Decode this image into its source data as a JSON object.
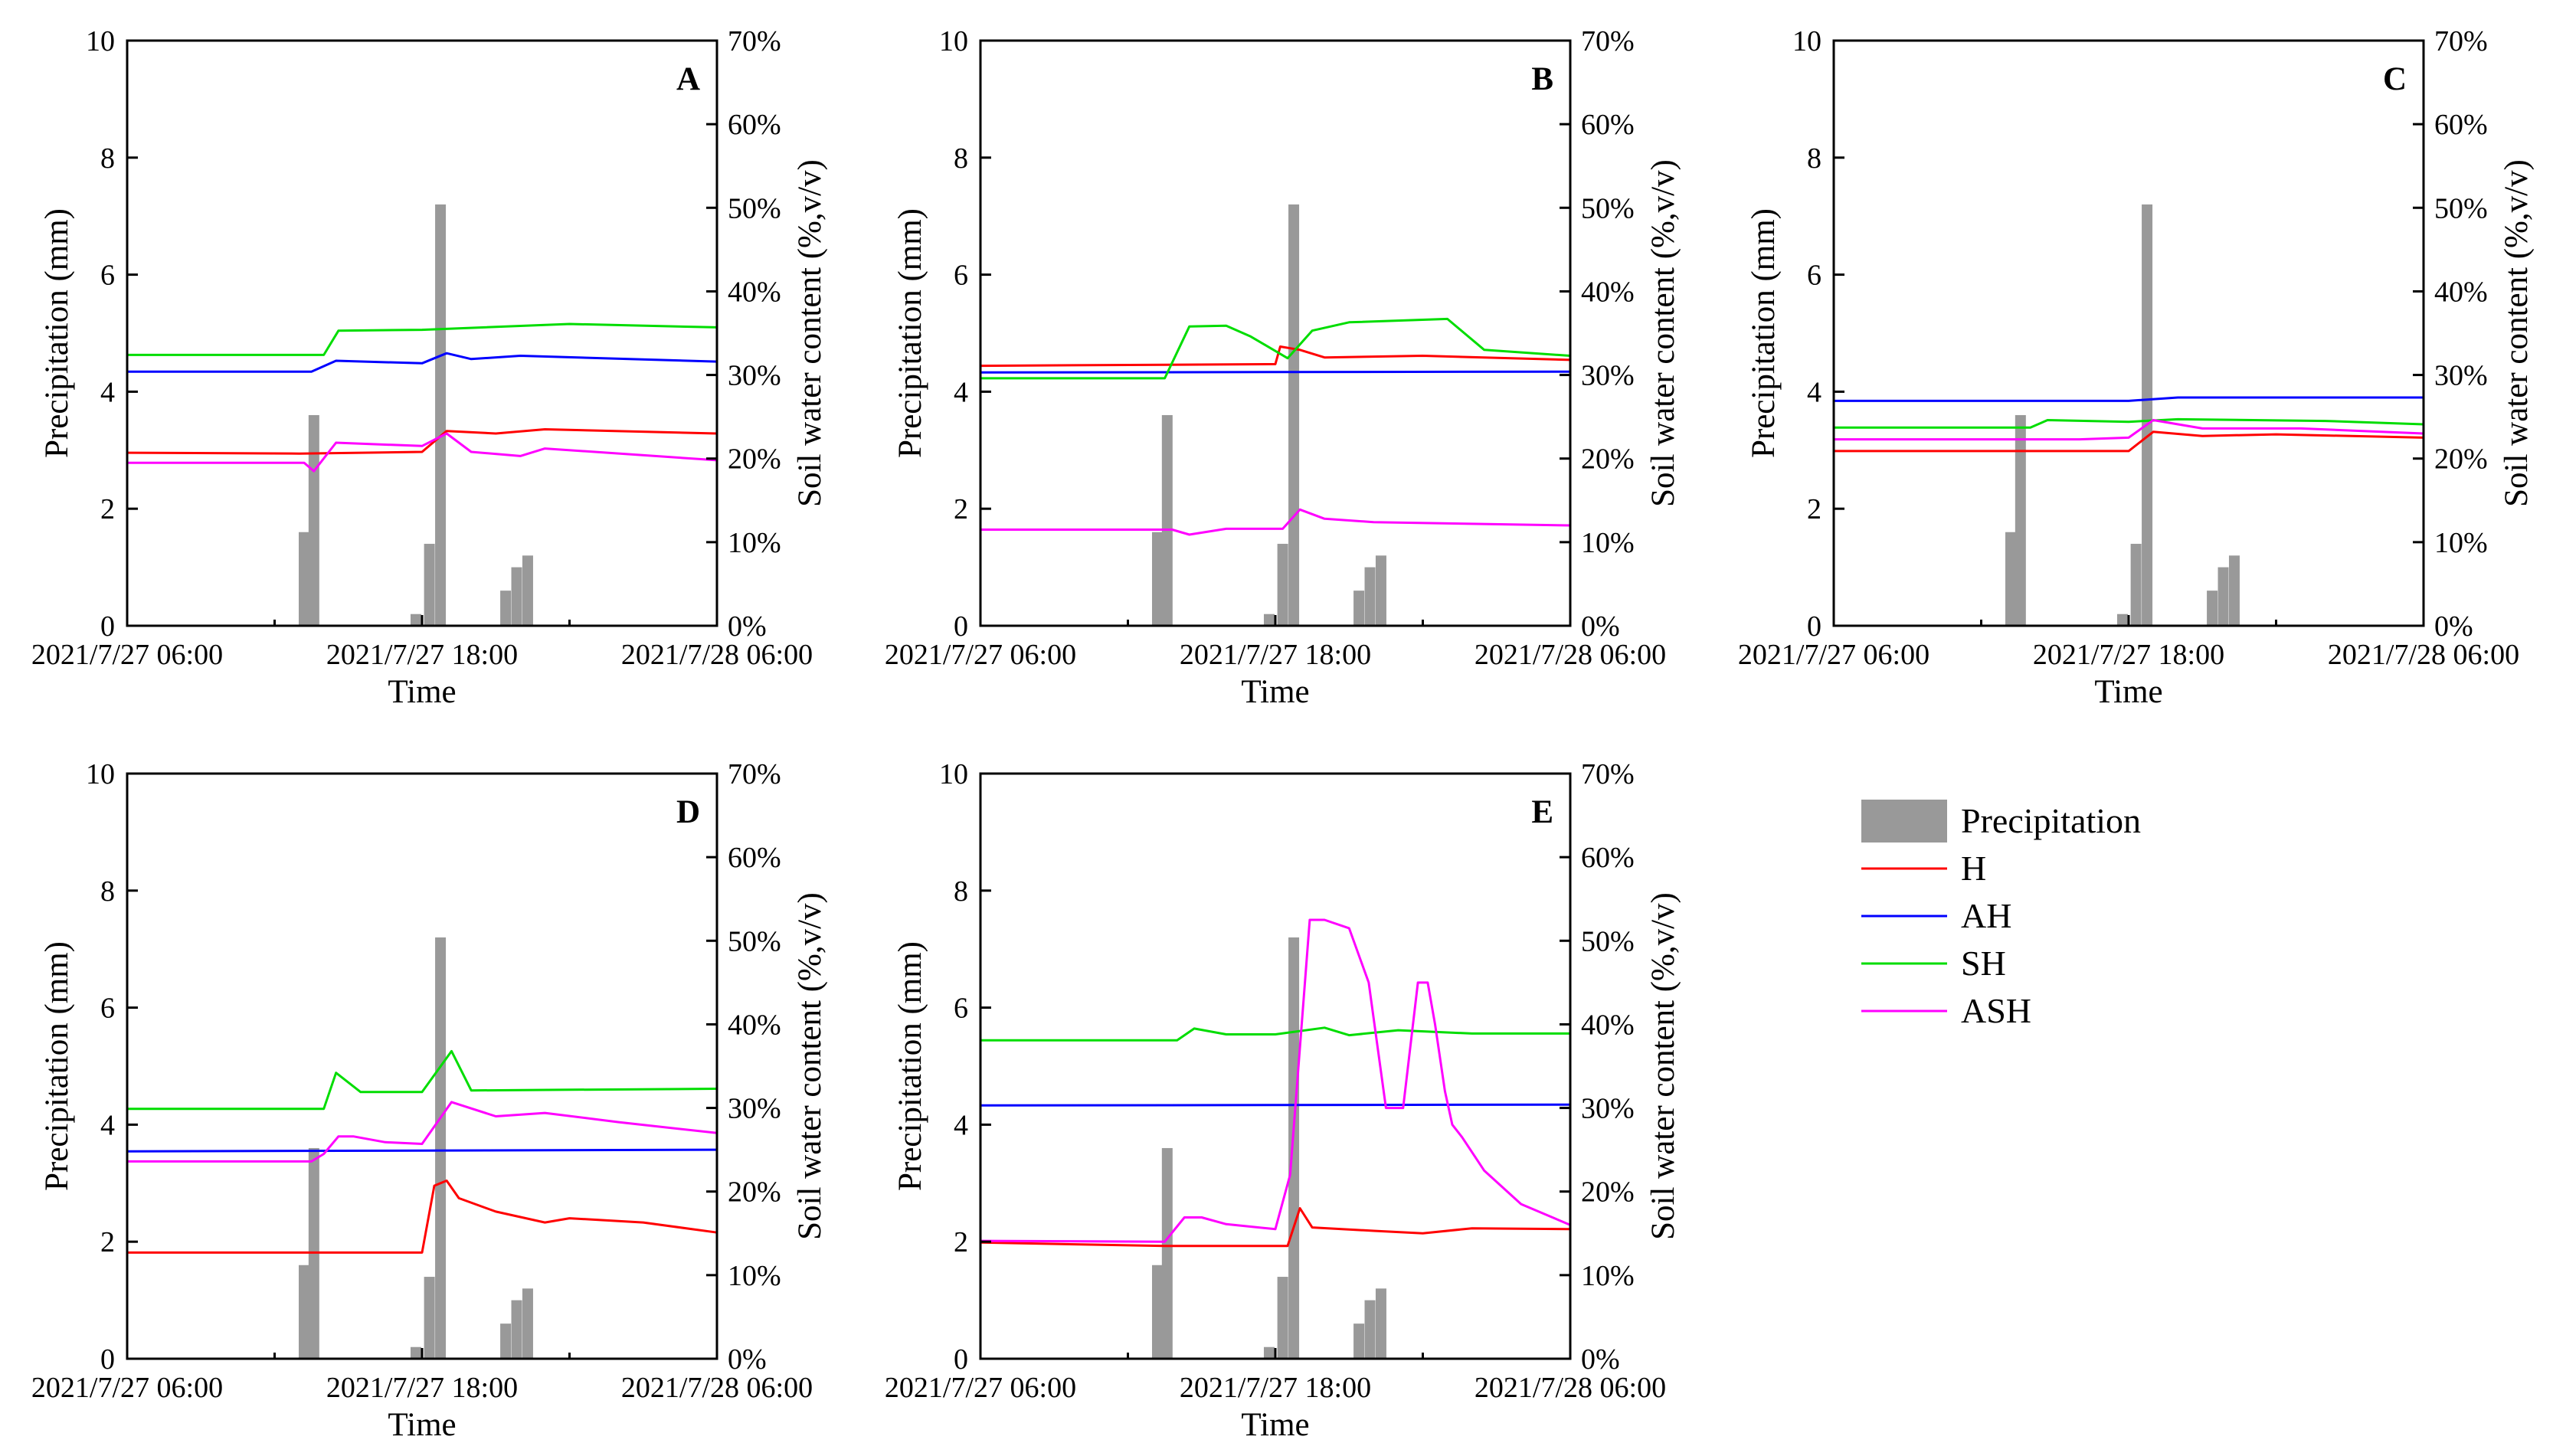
{
  "chart_data": {
    "type": "bar+line",
    "layout": "2x3 grid of panels (A–E) with shared legend in the sixth cell",
    "x_axis": {
      "title": "Time",
      "range_hours": [
        0,
        24
      ],
      "ticks": [
        {
          "h": 0,
          "label": "2021/7/27 06:00"
        },
        {
          "h": 12,
          "label": "2021/7/27 18:00"
        },
        {
          "h": 24,
          "label": "2021/7/28 06:00"
        }
      ]
    },
    "y_left": {
      "title": "Precipitation (mm)",
      "range": [
        0,
        10
      ],
      "ticks": [
        0,
        2,
        4,
        6,
        8,
        10
      ]
    },
    "y_right": {
      "title": "Soil water content (%,v/v)",
      "range": [
        0,
        70
      ],
      "ticks": [
        "0%",
        "10%",
        "20%",
        "30%",
        "40%",
        "50%",
        "60%",
        "70%"
      ]
    },
    "precipitation_bars": [
      {
        "h": 7.2,
        "mm": 1.6
      },
      {
        "h": 7.6,
        "mm": 3.6
      },
      {
        "h": 11.75,
        "mm": 0.2
      },
      {
        "h": 12.3,
        "mm": 1.4
      },
      {
        "h": 12.75,
        "mm": 7.2
      },
      {
        "h": 15.4,
        "mm": 0.6
      },
      {
        "h": 15.85,
        "mm": 1.0
      },
      {
        "h": 16.3,
        "mm": 1.2
      }
    ],
    "legend": [
      {
        "key": "precip",
        "label": "Precipitation",
        "color": "#999999"
      },
      {
        "key": "H",
        "label": "H",
        "color": "#ff0000"
      },
      {
        "key": "AH",
        "label": "AH",
        "color": "#0000ff"
      },
      {
        "key": "SH",
        "label": "SH",
        "color": "#00dd00"
      },
      {
        "key": "ASH",
        "label": "ASH",
        "color": "#ff00ff"
      }
    ],
    "panels": [
      {
        "label": "A",
        "series": {
          "H": [
            [
              0,
              20.7
            ],
            [
              7,
              20.6
            ],
            [
              12,
              20.8
            ],
            [
              13,
              23.3
            ],
            [
              15,
              23.0
            ],
            [
              17,
              23.5
            ],
            [
              24,
              23.0
            ]
          ],
          "AH": [
            [
              0,
              30.4
            ],
            [
              7.5,
              30.4
            ],
            [
              8.5,
              31.7
            ],
            [
              12,
              31.4
            ],
            [
              13,
              32.6
            ],
            [
              14,
              31.9
            ],
            [
              16,
              32.3
            ],
            [
              24,
              31.6
            ]
          ],
          "SH": [
            [
              0,
              32.4
            ],
            [
              8,
              32.4
            ],
            [
              8.6,
              35.3
            ],
            [
              12,
              35.4
            ],
            [
              18,
              36.1
            ],
            [
              24,
              35.7
            ]
          ],
          "ASH": [
            [
              0,
              19.5
            ],
            [
              7.2,
              19.5
            ],
            [
              7.6,
              18.5
            ],
            [
              8.5,
              21.9
            ],
            [
              12,
              21.5
            ],
            [
              13,
              23.0
            ],
            [
              14,
              20.8
            ],
            [
              16,
              20.3
            ],
            [
              17,
              21.2
            ],
            [
              24,
              19.8
            ]
          ]
        }
      },
      {
        "label": "B",
        "series": {
          "H": [
            [
              0,
              31.1
            ],
            [
              12,
              31.3
            ],
            [
              12.2,
              33.4
            ],
            [
              13,
              33.0
            ],
            [
              14,
              32.1
            ],
            [
              18,
              32.3
            ],
            [
              24,
              31.8
            ]
          ],
          "AH": [
            [
              0,
              30.3
            ],
            [
              24,
              30.4
            ]
          ],
          "SH": [
            [
              0,
              29.6
            ],
            [
              7.5,
              29.6
            ],
            [
              8.5,
              35.8
            ],
            [
              10,
              35.9
            ],
            [
              11,
              34.6
            ],
            [
              12.5,
              32.0
            ],
            [
              13.5,
              35.3
            ],
            [
              15,
              36.3
            ],
            [
              19,
              36.7
            ],
            [
              20.5,
              33.0
            ],
            [
              24,
              32.3
            ]
          ],
          "ASH": [
            [
              0,
              11.5
            ],
            [
              7.8,
              11.5
            ],
            [
              8.5,
              10.9
            ],
            [
              10,
              11.6
            ],
            [
              12.3,
              11.6
            ],
            [
              13,
              13.9
            ],
            [
              14,
              12.8
            ],
            [
              16,
              12.4
            ],
            [
              24,
              12.0
            ]
          ]
        }
      },
      {
        "label": "C",
        "series": {
          "H": [
            [
              0,
              20.9
            ],
            [
              12,
              20.9
            ],
            [
              13,
              23.2
            ],
            [
              15,
              22.7
            ],
            [
              18,
              22.9
            ],
            [
              24,
              22.5
            ]
          ],
          "AH": [
            [
              0,
              26.9
            ],
            [
              12,
              26.9
            ],
            [
              14,
              27.3
            ],
            [
              24,
              27.3
            ]
          ],
          "SH": [
            [
              0,
              23.7
            ],
            [
              8,
              23.7
            ],
            [
              8.7,
              24.6
            ],
            [
              12,
              24.4
            ],
            [
              14,
              24.7
            ],
            [
              20,
              24.5
            ],
            [
              24,
              24.1
            ]
          ],
          "ASH": [
            [
              0,
              22.3
            ],
            [
              10,
              22.3
            ],
            [
              12,
              22.5
            ],
            [
              13,
              24.6
            ],
            [
              15,
              23.6
            ],
            [
              19,
              23.6
            ],
            [
              24,
              23.0
            ]
          ]
        }
      },
      {
        "label": "D",
        "series": {
          "H": [
            [
              0,
              12.7
            ],
            [
              12,
              12.7
            ],
            [
              12.5,
              20.7
            ],
            [
              13,
              21.3
            ],
            [
              13.5,
              19.2
            ],
            [
              15,
              17.6
            ],
            [
              17,
              16.3
            ],
            [
              18,
              16.8
            ],
            [
              21,
              16.3
            ],
            [
              24,
              15.1
            ]
          ],
          "AH": [
            [
              0,
              24.8
            ],
            [
              24,
              25.0
            ]
          ],
          "SH": [
            [
              0,
              29.9
            ],
            [
              8,
              29.9
            ],
            [
              8.5,
              34.2
            ],
            [
              9.5,
              31.9
            ],
            [
              12,
              31.9
            ],
            [
              13.2,
              36.8
            ],
            [
              14,
              32.1
            ],
            [
              24,
              32.3
            ]
          ],
          "ASH": [
            [
              0,
              23.6
            ],
            [
              7.5,
              23.6
            ],
            [
              8,
              24.5
            ],
            [
              8.6,
              26.6
            ],
            [
              9.2,
              26.6
            ],
            [
              10.5,
              25.9
            ],
            [
              12,
              25.7
            ],
            [
              13.2,
              30.7
            ],
            [
              15,
              29.0
            ],
            [
              17,
              29.4
            ],
            [
              20,
              28.3
            ],
            [
              24,
              27.0
            ]
          ]
        }
      },
      {
        "label": "E",
        "series": {
          "H": [
            [
              0,
              13.9
            ],
            [
              7.5,
              13.5
            ],
            [
              12.5,
              13.5
            ],
            [
              13,
              18.0
            ],
            [
              13.5,
              15.7
            ],
            [
              16,
              15.3
            ],
            [
              18,
              15.0
            ],
            [
              20,
              15.6
            ],
            [
              24,
              15.5
            ]
          ],
          "AH": [
            [
              0,
              30.3
            ],
            [
              24,
              30.4
            ]
          ],
          "SH": [
            [
              0,
              38.1
            ],
            [
              8,
              38.1
            ],
            [
              8.7,
              39.5
            ],
            [
              10,
              38.8
            ],
            [
              12,
              38.8
            ],
            [
              14,
              39.6
            ],
            [
              15,
              38.7
            ],
            [
              17,
              39.3
            ],
            [
              20,
              38.9
            ],
            [
              24,
              38.9
            ]
          ],
          "ASH": [
            [
              0,
              14.1
            ],
            [
              7.5,
              14.0
            ],
            [
              8.3,
              16.9
            ],
            [
              9,
              16.9
            ],
            [
              10,
              16.1
            ],
            [
              12,
              15.5
            ],
            [
              12.6,
              22.0
            ],
            [
              13.4,
              52.5
            ],
            [
              14,
              52.5
            ],
            [
              15,
              51.5
            ],
            [
              15.8,
              45.0
            ],
            [
              16.5,
              30.0
            ],
            [
              17.2,
              30.0
            ],
            [
              17.8,
              45.0
            ],
            [
              18.2,
              45.0
            ],
            [
              18.5,
              40.0
            ],
            [
              18.9,
              32.0
            ],
            [
              19.2,
              28.0
            ],
            [
              19.6,
              26.5
            ],
            [
              20.5,
              22.5
            ],
            [
              22,
              18.5
            ],
            [
              24,
              16.0
            ]
          ]
        }
      }
    ]
  }
}
